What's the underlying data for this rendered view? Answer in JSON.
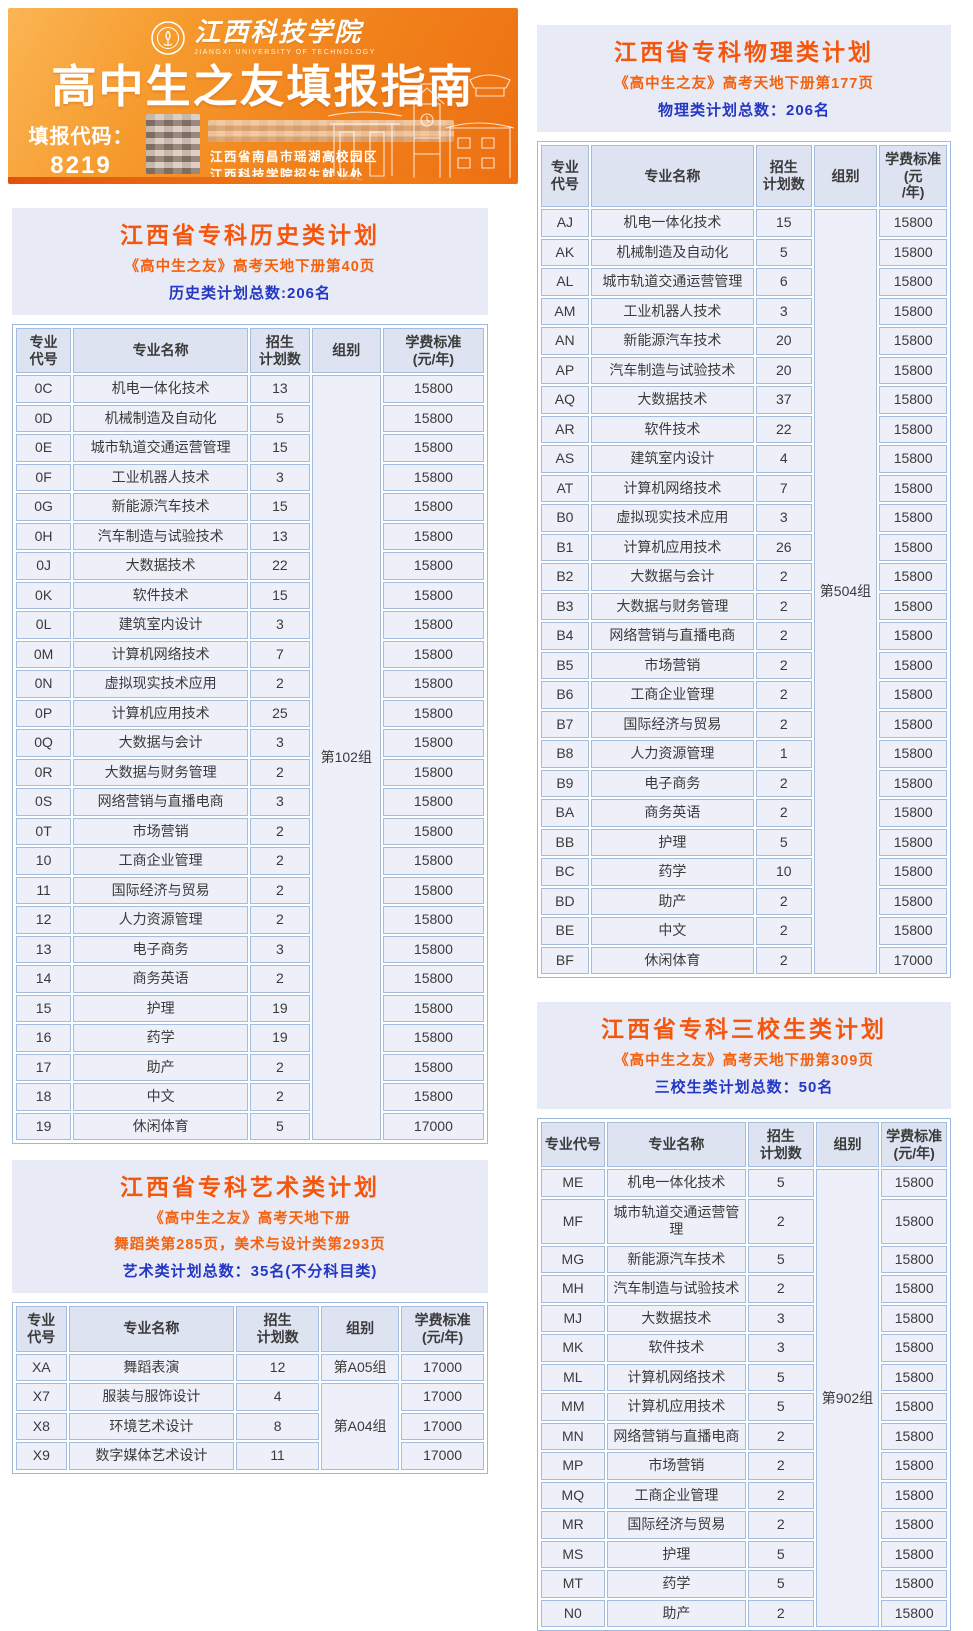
{
  "banner": {
    "university_name": "江西科技学院",
    "university_name_en": "JIANGXI UNIVERSITY OF TECHNOLOGY",
    "main_title": "高中生之友填报指南",
    "code_label": "填报代码：",
    "code_value": "8219",
    "address_line1": "江西省南昌市瑶湖高校园区",
    "address_line2": "江西科技学院招生就业处"
  },
  "colors": {
    "banner_orange": "#f1821b",
    "title_orange": "#f4560e",
    "total_blue": "#2336c4",
    "band_bg": "#e8ebf5",
    "table_border": "#a4bcde",
    "header_cell_bg": "#dde3f1",
    "body_cell_bg": "#edf0f8"
  },
  "plans": {
    "history": {
      "title": "江西省专科历史类计划",
      "subtitle": "《高中生之友》高考天地下册第40页",
      "total": "历史类计划总数:206名",
      "col_headers": [
        "专业\n代号",
        "专业名称",
        "招生\n计划数",
        "组别",
        "学费标准\n(元/年)"
      ],
      "group_spans": [
        {
          "label": "第102组",
          "from": 0,
          "count": 26
        }
      ],
      "rows": [
        [
          "0C",
          "机电一体化技术",
          "13",
          "15800"
        ],
        [
          "0D",
          "机械制造及自动化",
          "5",
          "15800"
        ],
        [
          "0E",
          "城市轨道交通运营管理",
          "15",
          "15800"
        ],
        [
          "0F",
          "工业机器人技术",
          "3",
          "15800"
        ],
        [
          "0G",
          "新能源汽车技术",
          "15",
          "15800"
        ],
        [
          "0H",
          "汽车制造与试验技术",
          "13",
          "15800"
        ],
        [
          "0J",
          "大数据技术",
          "22",
          "15800"
        ],
        [
          "0K",
          "软件技术",
          "15",
          "15800"
        ],
        [
          "0L",
          "建筑室内设计",
          "3",
          "15800"
        ],
        [
          "0M",
          "计算机网络技术",
          "7",
          "15800"
        ],
        [
          "0N",
          "虚拟现实技术应用",
          "2",
          "15800"
        ],
        [
          "0P",
          "计算机应用技术",
          "25",
          "15800"
        ],
        [
          "0Q",
          "大数据与会计",
          "3",
          "15800"
        ],
        [
          "0R",
          "大数据与财务管理",
          "2",
          "15800"
        ],
        [
          "0S",
          "网络营销与直播电商",
          "3",
          "15800"
        ],
        [
          "0T",
          "市场营销",
          "2",
          "15800"
        ],
        [
          "10",
          "工商企业管理",
          "2",
          "15800"
        ],
        [
          "11",
          "国际经济与贸易",
          "2",
          "15800"
        ],
        [
          "12",
          "人力资源管理",
          "2",
          "15800"
        ],
        [
          "13",
          "电子商务",
          "3",
          "15800"
        ],
        [
          "14",
          "商务英语",
          "2",
          "15800"
        ],
        [
          "15",
          "护理",
          "19",
          "15800"
        ],
        [
          "16",
          "药学",
          "19",
          "15800"
        ],
        [
          "17",
          "助产",
          "2",
          "15800"
        ],
        [
          "18",
          "中文",
          "2",
          "15800"
        ],
        [
          "19",
          "休闲体育",
          "5",
          "17000"
        ]
      ]
    },
    "art": {
      "title": "江西省专科艺术类计划",
      "subtitle": "《高中生之友》高考天地下册",
      "subtitle2": "舞蹈类第285页，美术与设计类第293页",
      "total": "艺术类计划总数：35名(不分科目类)",
      "col_headers": [
        "专业\n代号",
        "专业名称",
        "招生\n计划数",
        "组别",
        "学费标准\n(元/年)"
      ],
      "group_spans": [
        {
          "label": "第A05组",
          "from": 0,
          "count": 1
        },
        {
          "label": "第A04组",
          "from": 1,
          "count": 3
        }
      ],
      "rows": [
        [
          "XA",
          "舞蹈表演",
          "12",
          "17000"
        ],
        [
          "X7",
          "服装与服饰设计",
          "4",
          "17000"
        ],
        [
          "X8",
          "环境艺术设计",
          "8",
          "17000"
        ],
        [
          "X9",
          "数字媒体艺术设计",
          "11",
          "17000"
        ]
      ]
    },
    "physics": {
      "title": "江西省专科物理类计划",
      "subtitle": "《高中生之友》高考天地下册第177页",
      "total": "物理类计划总数：206名",
      "col_headers": [
        "专业\n代号",
        "专业名称",
        "招生\n计划数",
        "组别",
        "学费标准\n(元\n/年)"
      ],
      "group_spans": [
        {
          "label": "第504组",
          "from": 0,
          "count": 26
        }
      ],
      "rows": [
        [
          "AJ",
          "机电一体化技术",
          "15",
          "15800"
        ],
        [
          "AK",
          "机械制造及自动化",
          "5",
          "15800"
        ],
        [
          "AL",
          "城市轨道交通运营管理",
          "6",
          "15800"
        ],
        [
          "AM",
          "工业机器人技术",
          "3",
          "15800"
        ],
        [
          "AN",
          "新能源汽车技术",
          "20",
          "15800"
        ],
        [
          "AP",
          "汽车制造与试验技术",
          "20",
          "15800"
        ],
        [
          "AQ",
          "大数据技术",
          "37",
          "15800"
        ],
        [
          "AR",
          "软件技术",
          "22",
          "15800"
        ],
        [
          "AS",
          "建筑室内设计",
          "4",
          "15800"
        ],
        [
          "AT",
          "计算机网络技术",
          "7",
          "15800"
        ],
        [
          "B0",
          "虚拟现实技术应用",
          "3",
          "15800"
        ],
        [
          "B1",
          "计算机应用技术",
          "26",
          "15800"
        ],
        [
          "B2",
          "大数据与会计",
          "2",
          "15800"
        ],
        [
          "B3",
          "大数据与财务管理",
          "2",
          "15800"
        ],
        [
          "B4",
          "网络营销与直播电商",
          "2",
          "15800"
        ],
        [
          "B5",
          "市场营销",
          "2",
          "15800"
        ],
        [
          "B6",
          "工商企业管理",
          "2",
          "15800"
        ],
        [
          "B7",
          "国际经济与贸易",
          "2",
          "15800"
        ],
        [
          "B8",
          "人力资源管理",
          "1",
          "15800"
        ],
        [
          "B9",
          "电子商务",
          "2",
          "15800"
        ],
        [
          "BA",
          "商务英语",
          "2",
          "15800"
        ],
        [
          "BB",
          "护理",
          "5",
          "15800"
        ],
        [
          "BC",
          "药学",
          "10",
          "15800"
        ],
        [
          "BD",
          "助产",
          "2",
          "15800"
        ],
        [
          "BE",
          "中文",
          "2",
          "15800"
        ],
        [
          "BF",
          "休闲体育",
          "2",
          "17000"
        ]
      ]
    },
    "sanxiao": {
      "title": "江西省专科三校生类计划",
      "subtitle": "《高中生之友》高考天地下册第309页",
      "total": "三校生类计划总数：50名",
      "col_headers": [
        "专业代号",
        "专业名称",
        "招生\n计划数",
        "组别",
        "学费标准\n(元/年)"
      ],
      "group_spans": [
        {
          "label": "第902组",
          "from": 0,
          "count": 15
        }
      ],
      "rows": [
        [
          "ME",
          "机电一体化技术",
          "5",
          "15800"
        ],
        [
          "MF",
          "城市轨道交通运营管理",
          "2",
          "15800"
        ],
        [
          "MG",
          "新能源汽车技术",
          "5",
          "15800"
        ],
        [
          "MH",
          "汽车制造与试验技术",
          "2",
          "15800"
        ],
        [
          "MJ",
          "大数据技术",
          "3",
          "15800"
        ],
        [
          "MK",
          "软件技术",
          "3",
          "15800"
        ],
        [
          "ML",
          "计算机网络技术",
          "5",
          "15800"
        ],
        [
          "MM",
          "计算机应用技术",
          "5",
          "15800"
        ],
        [
          "MN",
          "网络营销与直播电商",
          "2",
          "15800"
        ],
        [
          "MP",
          "市场营销",
          "2",
          "15800"
        ],
        [
          "MQ",
          "工商企业管理",
          "2",
          "15800"
        ],
        [
          "MR",
          "国际经济与贸易",
          "2",
          "15800"
        ],
        [
          "MS",
          "护理",
          "5",
          "15800"
        ],
        [
          "MT",
          "药学",
          "5",
          "15800"
        ],
        [
          "N0",
          "助产",
          "2",
          "15800"
        ]
      ]
    }
  }
}
